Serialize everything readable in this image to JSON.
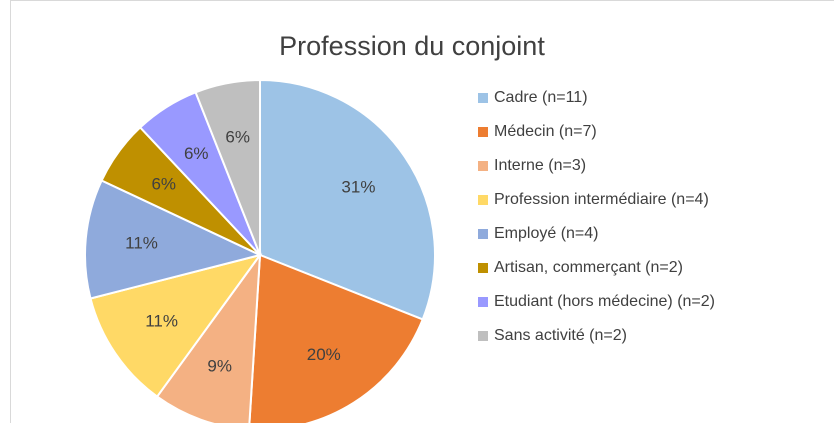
{
  "chart_data": {
    "type": "pie",
    "title": "Profession du conjoint",
    "categories": [
      "Cadre (n=11)",
      "Médecin (n=7)",
      "Interne (n=3)",
      "Profession intermédiaire (n=4)",
      "Employé (n=4)",
      "Artisan, commerçant (n=2)",
      "Etudiant (hors médecine) (n=2)",
      "Sans activité (n=2)"
    ],
    "values": [
      31,
      20,
      9,
      11,
      11,
      6,
      6,
      6
    ],
    "value_labels": [
      "31%",
      "20%",
      "9%",
      "11%",
      "11%",
      "6%",
      "6%",
      "6%"
    ],
    "colors": [
      "#9dc3e6",
      "#ed7d31",
      "#f4b183",
      "#ffd966",
      "#8faadc",
      "#bf9000",
      "#9999ff",
      "#bfbfbf"
    ],
    "legend": "right"
  }
}
